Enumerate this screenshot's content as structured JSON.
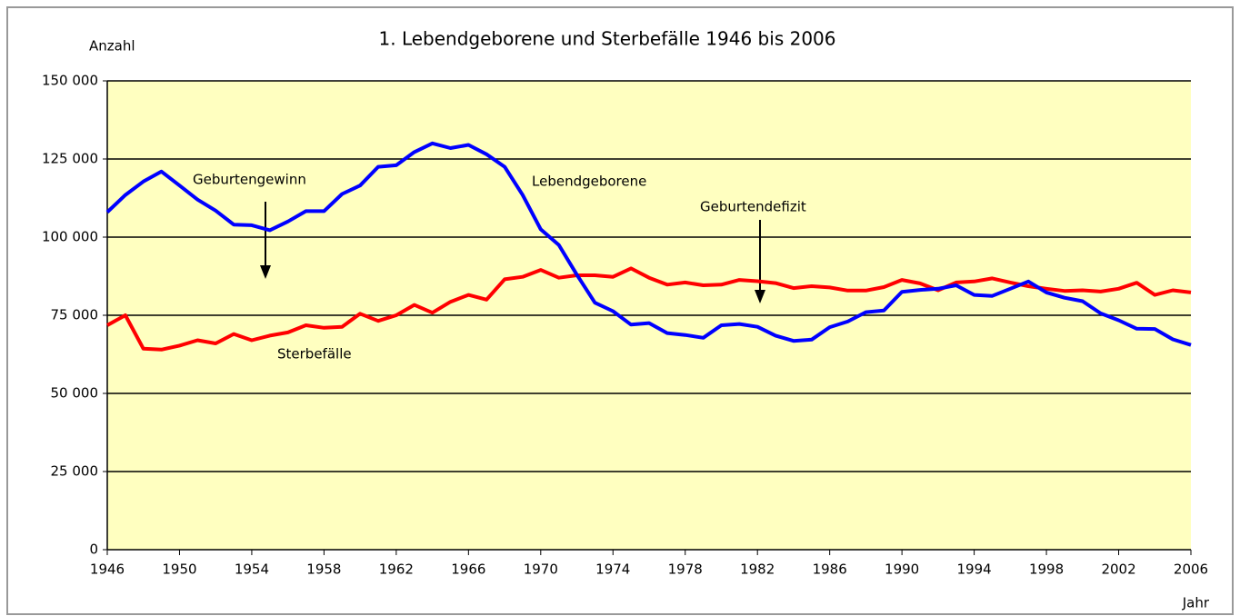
{
  "chart_data": {
    "type": "line",
    "title": "1. Lebendgeborene und Sterbefälle 1946 bis 2006",
    "y_label": "Anzahl",
    "x_label": "Jahr",
    "annotations": [
      "Geburtengewinn",
      "Lebendgeborene",
      "Geburtendefizit",
      "Sterbefälle"
    ],
    "x": [
      1946,
      1947,
      1948,
      1949,
      1950,
      1951,
      1952,
      1953,
      1954,
      1955,
      1956,
      1957,
      1958,
      1959,
      1960,
      1961,
      1962,
      1963,
      1964,
      1965,
      1966,
      1967,
      1968,
      1969,
      1970,
      1971,
      1972,
      1973,
      1974,
      1975,
      1976,
      1977,
      1978,
      1979,
      1980,
      1981,
      1982,
      1983,
      1984,
      1985,
      1986,
      1987,
      1988,
      1989,
      1990,
      1991,
      1992,
      1993,
      1994,
      1995,
      1996,
      1997,
      1998,
      1999,
      2000,
      2001,
      2002,
      2003,
      2004,
      2005,
      2006
    ],
    "series": [
      {
        "name": "Lebendgeborene",
        "color": "#0000ff",
        "values": [
          108000,
          113500,
          117800,
          121000,
          116500,
          112000,
          108500,
          104000,
          103800,
          102200,
          105000,
          108300,
          108300,
          113800,
          116500,
          122500,
          123000,
          127200,
          130000,
          128500,
          129500,
          126500,
          122500,
          113500,
          102500,
          97500,
          88000,
          79000,
          76300,
          72000,
          72500,
          69300,
          68700,
          67800,
          71800,
          72200,
          71300,
          68500,
          66800,
          67200,
          71200,
          73000,
          76000,
          76500,
          82500,
          83100,
          83500,
          84600,
          81500,
          81200,
          83500,
          85800,
          82300,
          80600,
          79500,
          75600,
          73400,
          70700,
          70600,
          67300,
          65500
        ]
      },
      {
        "name": "Sterbefälle",
        "color": "#ff0000",
        "values": [
          71800,
          75000,
          64300,
          64000,
          65300,
          67000,
          66000,
          69000,
          67000,
          68500,
          69500,
          71800,
          71000,
          71300,
          75500,
          73200,
          75000,
          78300,
          75800,
          79300,
          81500,
          80000,
          86500,
          87300,
          89500,
          87000,
          87800,
          87800,
          87300,
          90000,
          87000,
          84800,
          85500,
          84600,
          84800,
          86300,
          85900,
          85300,
          83700,
          84300,
          83900,
          82900,
          82900,
          84000,
          86300,
          85200,
          83000,
          85500,
          85800,
          86800,
          85500,
          84300,
          83500,
          82800,
          83000,
          82600,
          83500,
          85400,
          81500,
          83000,
          82300
        ]
      }
    ],
    "xlim": [
      1946,
      2006
    ],
    "xticks": [
      1946,
      1950,
      1954,
      1958,
      1962,
      1966,
      1970,
      1974,
      1978,
      1982,
      1986,
      1990,
      1994,
      1998,
      2002,
      2006
    ],
    "ylim": [
      0,
      150000
    ],
    "yticks": [
      0,
      {
        "value": 25000,
        "label": "25 000"
      },
      {
        "value": 50000,
        "label": "50 000"
      },
      {
        "value": 75000,
        "label": "75 000"
      },
      {
        "value": 100000,
        "label": "100 000"
      },
      {
        "value": 125000,
        "label": "125 000"
      },
      {
        "value": 150000,
        "label": "150 000"
      }
    ],
    "grid": true,
    "background": "#ffffc0"
  }
}
